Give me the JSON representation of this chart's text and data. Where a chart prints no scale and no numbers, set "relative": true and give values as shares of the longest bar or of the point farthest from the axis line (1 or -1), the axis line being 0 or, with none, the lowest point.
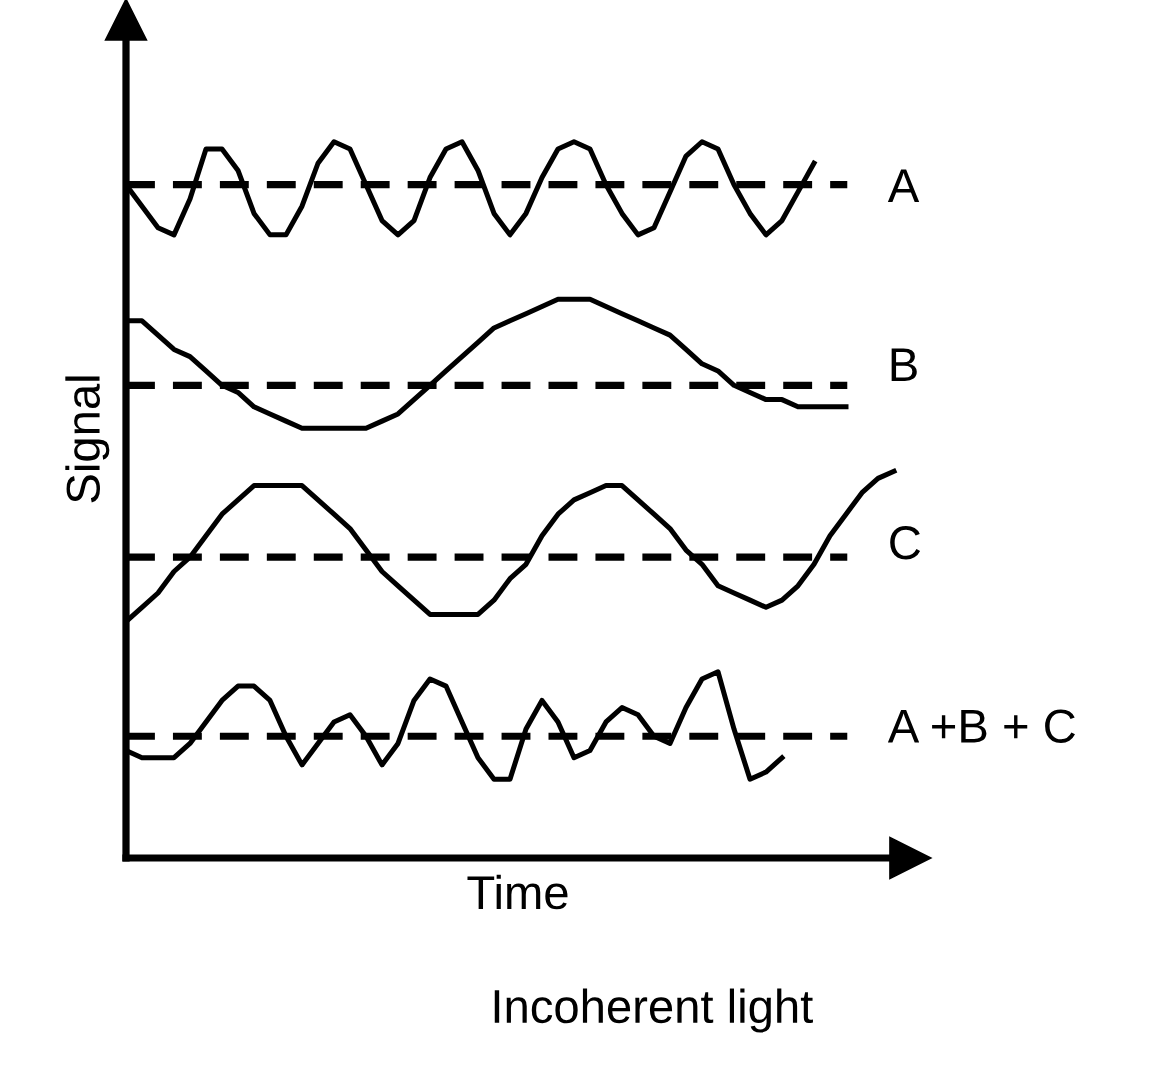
{
  "chart_data": {
    "type": "line",
    "relative": true,
    "xlabel": "Time",
    "ylabel": "Signal",
    "annotations": [
      "Incoherent light"
    ],
    "categories": [
      null,
      null,
      null,
      null,
      null,
      null,
      null,
      null,
      null,
      null,
      null,
      null,
      null,
      null,
      null,
      null,
      null,
      null,
      null,
      null,
      null,
      null,
      null,
      null,
      null,
      null,
      null,
      null,
      null,
      null,
      null,
      null,
      null,
      null,
      null,
      null,
      null,
      null,
      null,
      null,
      null,
      null,
      null,
      null,
      null,
      null,
      null,
      null,
      null,
      null
    ],
    "series": [
      {
        "name": "A",
        "color": "#000000",
        "values": [
          0.94,
          0.91,
          0.88,
          0.87,
          0.92,
          0.99,
          0.99,
          0.96,
          0.9,
          0.87,
          0.87,
          0.91,
          0.97,
          1.0,
          0.99,
          0.94,
          0.89,
          0.87,
          0.89,
          0.95,
          0.99,
          1.0,
          0.96,
          0.9,
          0.87,
          0.9,
          0.95,
          0.99,
          1.0,
          0.99,
          0.94,
          0.9,
          0.87,
          0.88,
          0.93,
          0.98,
          1.0,
          0.99,
          0.94,
          0.9,
          0.87,
          0.89,
          0.93,
          0.97,
          null,
          null,
          null,
          null,
          null,
          null
        ]
      },
      {
        "name": "B",
        "color": "#000000",
        "values": [
          0.75,
          0.75,
          0.73,
          0.71,
          0.7,
          0.68,
          0.66,
          0.65,
          0.63,
          0.62,
          0.61,
          0.6,
          0.6,
          0.6,
          0.6,
          0.6,
          0.61,
          0.62,
          0.64,
          0.66,
          0.68,
          0.7,
          0.72,
          0.74,
          0.75,
          0.76,
          0.77,
          0.78,
          0.78,
          0.78,
          0.77,
          0.76,
          0.75,
          0.74,
          0.73,
          0.71,
          0.69,
          0.68,
          0.66,
          0.65,
          0.64,
          0.64,
          0.63,
          0.63,
          0.63,
          0.63,
          null,
          null,
          null,
          null
        ]
      },
      {
        "name": "C",
        "color": "#000000",
        "values": [
          0.33,
          0.35,
          0.37,
          0.4,
          0.42,
          0.45,
          0.48,
          0.5,
          0.52,
          0.52,
          0.52,
          0.52,
          0.5,
          0.48,
          0.46,
          0.43,
          0.4,
          0.38,
          0.36,
          0.34,
          0.34,
          0.34,
          0.34,
          0.36,
          0.39,
          0.41,
          0.45,
          0.48,
          0.5,
          0.51,
          0.52,
          0.52,
          0.5,
          0.48,
          0.46,
          0.43,
          0.41,
          0.38,
          0.37,
          0.36,
          0.35,
          0.36,
          0.38,
          0.41,
          0.45,
          0.48,
          0.51,
          0.53,
          0.54,
          null
        ]
      },
      {
        "name": "A +B + C",
        "color": "#000000",
        "values": [
          0.15,
          0.14,
          0.14,
          0.14,
          0.16,
          0.19,
          0.22,
          0.24,
          0.24,
          0.22,
          0.17,
          0.13,
          0.16,
          0.19,
          0.2,
          0.17,
          0.13,
          0.16,
          0.22,
          0.25,
          0.24,
          0.19,
          0.14,
          0.11,
          0.11,
          0.18,
          0.22,
          0.19,
          0.14,
          0.15,
          0.19,
          0.21,
          0.2,
          0.17,
          0.16,
          0.21,
          0.25,
          0.26,
          0.18,
          0.11,
          0.12,
          0.14,
          null,
          null,
          null,
          null,
          null,
          null,
          null,
          null
        ]
      }
    ],
    "ref_lines": [
      {
        "axis": "y",
        "value": 0.94,
        "color": "#000000",
        "line_style": "dashed"
      },
      {
        "axis": "y",
        "value": 0.66,
        "color": "#000000",
        "line_style": "dashed"
      },
      {
        "axis": "y",
        "value": 0.42,
        "color": "#000000",
        "line_style": "dashed"
      },
      {
        "axis": "y",
        "value": 0.17,
        "color": "#000000",
        "line_style": "dashed"
      }
    ],
    "legend": false,
    "marker": "none",
    "line_style": "solid"
  }
}
